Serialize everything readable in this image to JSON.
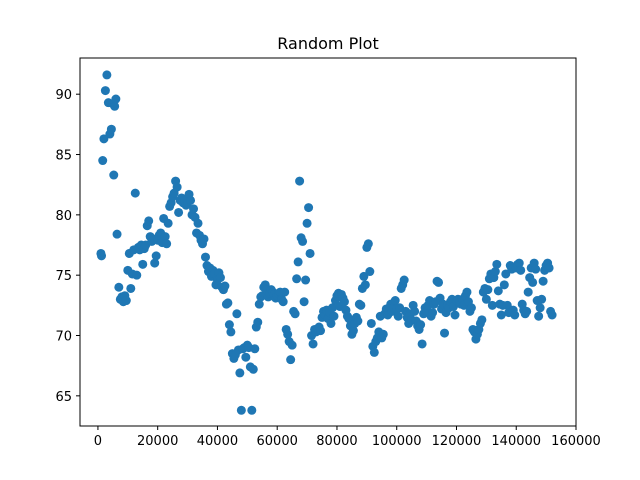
{
  "chart_data": {
    "type": "scatter",
    "title": "Random Plot",
    "xlabel": "",
    "ylabel": "",
    "xlim": [
      -6000,
      160000
    ],
    "ylim": [
      62.5,
      93
    ],
    "x_ticks": [
      0,
      20000,
      40000,
      60000,
      80000,
      100000,
      120000,
      140000,
      160000
    ],
    "x_tick_labels": [
      "0",
      "20000",
      "40000",
      "60000",
      "80000",
      "100000",
      "120000",
      "140000",
      "160000"
    ],
    "y_ticks": [
      65,
      70,
      75,
      80,
      85,
      90
    ],
    "y_tick_labels": [
      "65",
      "70",
      "75",
      "80",
      "85",
      "90"
    ],
    "grid": false,
    "legend": "none",
    "marker_color": "#1f77b4",
    "points": [
      [
        1000,
        76.8
      ],
      [
        1200,
        76.6
      ],
      [
        1600,
        84.5
      ],
      [
        2000,
        86.3
      ],
      [
        2500,
        90.3
      ],
      [
        3000,
        91.6
      ],
      [
        3500,
        89.3
      ],
      [
        4000,
        86.7
      ],
      [
        4500,
        87.1
      ],
      [
        5000,
        89.2
      ],
      [
        5300,
        83.3
      ],
      [
        5600,
        89.0
      ],
      [
        6000,
        89.6
      ],
      [
        6400,
        78.4
      ],
      [
        7000,
        74.0
      ],
      [
        7500,
        73.0
      ],
      [
        8000,
        73.2
      ],
      [
        8500,
        72.8
      ],
      [
        9000,
        73.3
      ],
      [
        9500,
        72.9
      ],
      [
        10000,
        75.4
      ],
      [
        10500,
        76.8
      ],
      [
        11000,
        73.9
      ],
      [
        11500,
        75.1
      ],
      [
        12000,
        77.1
      ],
      [
        12500,
        81.8
      ],
      [
        13000,
        75.0
      ],
      [
        13500,
        77.3
      ],
      [
        14000,
        77.1
      ],
      [
        14500,
        77.5
      ],
      [
        15000,
        75.9
      ],
      [
        15500,
        77.2
      ],
      [
        16000,
        77.5
      ],
      [
        16500,
        79.1
      ],
      [
        17000,
        79.5
      ],
      [
        17500,
        78.2
      ],
      [
        18000,
        77.8
      ],
      [
        18500,
        78.0
      ],
      [
        19000,
        76.0
      ],
      [
        19500,
        76.6
      ],
      [
        20000,
        77.9
      ],
      [
        20500,
        78.3
      ],
      [
        21000,
        78.5
      ],
      [
        21500,
        77.7
      ],
      [
        22000,
        79.7
      ],
      [
        22500,
        78.2
      ],
      [
        23000,
        77.6
      ],
      [
        23500,
        79.3
      ],
      [
        24000,
        80.7
      ],
      [
        24500,
        81.0
      ],
      [
        25000,
        81.5
      ],
      [
        25500,
        81.8
      ],
      [
        26000,
        82.8
      ],
      [
        26500,
        82.3
      ],
      [
        27000,
        80.2
      ],
      [
        27500,
        81.2
      ],
      [
        28000,
        81.4
      ],
      [
        28500,
        81.0
      ],
      [
        29000,
        81.2
      ],
      [
        29500,
        80.8
      ],
      [
        30000,
        81.0
      ],
      [
        30500,
        81.7
      ],
      [
        31000,
        81.2
      ],
      [
        31500,
        80.0
      ],
      [
        32000,
        80.5
      ],
      [
        32500,
        79.8
      ],
      [
        33000,
        78.5
      ],
      [
        33500,
        79.3
      ],
      [
        34000,
        78.3
      ],
      [
        34500,
        77.9
      ],
      [
        35000,
        77.6
      ],
      [
        35500,
        78.0
      ],
      [
        36000,
        76.5
      ],
      [
        36500,
        75.8
      ],
      [
        37000,
        75.3
      ],
      [
        37500,
        75.6
      ],
      [
        38000,
        74.9
      ],
      [
        38500,
        75.4
      ],
      [
        39000,
        75.1
      ],
      [
        39500,
        74.2
      ],
      [
        40000,
        74.6
      ],
      [
        40500,
        75.2
      ],
      [
        41000,
        74.8
      ],
      [
        41500,
        74.0
      ],
      [
        42000,
        73.8
      ],
      [
        42500,
        74.1
      ],
      [
        43000,
        72.6
      ],
      [
        43500,
        72.7
      ],
      [
        44000,
        70.9
      ],
      [
        44500,
        70.3
      ],
      [
        45000,
        68.5
      ],
      [
        45500,
        68.1
      ],
      [
        46000,
        68.4
      ],
      [
        46500,
        71.8
      ],
      [
        47000,
        68.8
      ],
      [
        47500,
        66.9
      ],
      [
        48000,
        63.8
      ],
      [
        48500,
        68.9
      ],
      [
        49000,
        69.0
      ],
      [
        49500,
        68.2
      ],
      [
        50000,
        69.2
      ],
      [
        50500,
        69.0
      ],
      [
        51000,
        67.4
      ],
      [
        51500,
        63.8
      ],
      [
        52000,
        67.2
      ],
      [
        52500,
        68.9
      ],
      [
        53000,
        70.7
      ],
      [
        53500,
        71.1
      ],
      [
        54000,
        72.6
      ],
      [
        54500,
        73.2
      ],
      [
        55000,
        73.3
      ],
      [
        55500,
        74.0
      ],
      [
        56000,
        74.2
      ],
      [
        56500,
        73.8
      ],
      [
        57000,
        73.2
      ],
      [
        57500,
        73.5
      ],
      [
        58000,
        73.8
      ],
      [
        58500,
        73.6
      ],
      [
        59000,
        73.4
      ],
      [
        59500,
        73.1
      ],
      [
        60000,
        73.3
      ],
      [
        60500,
        73.5
      ],
      [
        61000,
        73.6
      ],
      [
        61500,
        73.0
      ],
      [
        62000,
        72.8
      ],
      [
        62500,
        73.6
      ],
      [
        63000,
        70.5
      ],
      [
        63500,
        70.1
      ],
      [
        64000,
        69.5
      ],
      [
        64500,
        68.0
      ],
      [
        65000,
        69.2
      ],
      [
        65500,
        72.0
      ],
      [
        66000,
        71.8
      ],
      [
        66500,
        74.7
      ],
      [
        67000,
        76.1
      ],
      [
        67500,
        82.8
      ],
      [
        68000,
        78.1
      ],
      [
        68500,
        77.8
      ],
      [
        69000,
        72.8
      ],
      [
        69500,
        74.6
      ],
      [
        70000,
        79.3
      ],
      [
        70500,
        80.6
      ],
      [
        71000,
        76.8
      ],
      [
        71500,
        70.0
      ],
      [
        72000,
        69.3
      ],
      [
        72500,
        70.5
      ],
      [
        73000,
        70.3
      ],
      [
        73500,
        70.5
      ],
      [
        74000,
        70.7
      ],
      [
        74500,
        70.4
      ],
      [
        75000,
        71.5
      ],
      [
        75500,
        72.0
      ],
      [
        76000,
        71.7
      ],
      [
        76500,
        72.1
      ],
      [
        77000,
        71.4
      ],
      [
        77500,
        71.9
      ],
      [
        78000,
        71.0
      ],
      [
        78500,
        72.3
      ],
      [
        79000,
        71.6
      ],
      [
        79500,
        72.9
      ],
      [
        80000,
        73.3
      ],
      [
        80500,
        73.5
      ],
      [
        81000,
        72.4
      ],
      [
        81500,
        73.4
      ],
      [
        82000,
        73.1
      ],
      [
        82500,
        72.8
      ],
      [
        83000,
        72.1
      ],
      [
        83500,
        71.6
      ],
      [
        84000,
        71.4
      ],
      [
        84500,
        70.8
      ],
      [
        85000,
        70.1
      ],
      [
        85500,
        70.4
      ],
      [
        86000,
        71.0
      ],
      [
        86500,
        71.5
      ],
      [
        87000,
        71.2
      ],
      [
        87500,
        72.6
      ],
      [
        88000,
        72.5
      ],
      [
        88500,
        73.9
      ],
      [
        89000,
        74.9
      ],
      [
        89500,
        74.2
      ],
      [
        90000,
        77.3
      ],
      [
        90500,
        77.6
      ],
      [
        91000,
        75.3
      ],
      [
        91500,
        71.0
      ],
      [
        92000,
        69.1
      ],
      [
        92500,
        68.6
      ],
      [
        93000,
        69.5
      ],
      [
        93500,
        69.8
      ],
      [
        94000,
        70.3
      ],
      [
        94500,
        71.6
      ],
      [
        95000,
        69.8
      ],
      [
        95500,
        70.1
      ],
      [
        96000,
        71.8
      ],
      [
        96500,
        72.2
      ],
      [
        97000,
        71.7
      ],
      [
        97500,
        72.3
      ],
      [
        98000,
        72.6
      ],
      [
        98500,
        72.0
      ],
      [
        99000,
        72.3
      ],
      [
        99500,
        72.9
      ],
      [
        100000,
        72.2
      ],
      [
        100500,
        71.6
      ],
      [
        101000,
        72.3
      ],
      [
        101500,
        73.9
      ],
      [
        102000,
        74.2
      ],
      [
        102500,
        74.6
      ],
      [
        103000,
        72.0
      ],
      [
        103500,
        71.5
      ],
      [
        104000,
        71.0
      ],
      [
        104500,
        71.8
      ],
      [
        105000,
        71.3
      ],
      [
        105500,
        72.5
      ],
      [
        106000,
        72.0
      ],
      [
        106500,
        71.2
      ],
      [
        107000,
        70.8
      ],
      [
        107500,
        70.5
      ],
      [
        108000,
        70.9
      ],
      [
        108500,
        69.3
      ],
      [
        109000,
        71.8
      ],
      [
        109500,
        72.3
      ],
      [
        110000,
        72.0
      ],
      [
        110500,
        72.5
      ],
      [
        111000,
        72.9
      ],
      [
        111500,
        71.6
      ],
      [
        112000,
        71.9
      ],
      [
        112500,
        72.6
      ],
      [
        113000,
        72.8
      ],
      [
        113500,
        74.5
      ],
      [
        114000,
        74.4
      ],
      [
        114500,
        73.1
      ],
      [
        115000,
        72.2
      ],
      [
        115500,
        72.6
      ],
      [
        116000,
        70.2
      ],
      [
        116500,
        71.9
      ],
      [
        117000,
        72.5
      ],
      [
        117500,
        72.3
      ],
      [
        118000,
        72.8
      ],
      [
        118500,
        73.0
      ],
      [
        119000,
        72.4
      ],
      [
        119500,
        71.7
      ],
      [
        120000,
        72.9
      ],
      [
        120500,
        73.0
      ],
      [
        121000,
        72.7
      ],
      [
        121500,
        72.6
      ],
      [
        122000,
        73.0
      ],
      [
        122500,
        72.5
      ],
      [
        123000,
        73.3
      ],
      [
        123500,
        73.6
      ],
      [
        124000,
        72.8
      ],
      [
        124500,
        72.0
      ],
      [
        125000,
        72.3
      ],
      [
        125500,
        70.5
      ],
      [
        126000,
        70.3
      ],
      [
        126500,
        69.7
      ],
      [
        127000,
        70.1
      ],
      [
        127500,
        70.5
      ],
      [
        128000,
        71.0
      ],
      [
        128500,
        71.3
      ],
      [
        129000,
        73.6
      ],
      [
        129500,
        73.9
      ],
      [
        130000,
        73.0
      ],
      [
        130500,
        73.8
      ],
      [
        131000,
        74.7
      ],
      [
        131500,
        75.1
      ],
      [
        132000,
        72.5
      ],
      [
        132500,
        74.8
      ],
      [
        133000,
        75.3
      ],
      [
        133500,
        75.9
      ],
      [
        134000,
        73.7
      ],
      [
        134500,
        72.6
      ],
      [
        135000,
        71.7
      ],
      [
        135500,
        72.5
      ],
      [
        136000,
        74.2
      ],
      [
        136500,
        75.1
      ],
      [
        137000,
        72.5
      ],
      [
        137500,
        71.9
      ],
      [
        138000,
        75.8
      ],
      [
        138500,
        75.5
      ],
      [
        139000,
        72.1
      ],
      [
        139500,
        71.7
      ],
      [
        140000,
        75.6
      ],
      [
        140500,
        75.9
      ],
      [
        141000,
        76.0
      ],
      [
        141500,
        75.4
      ],
      [
        142000,
        72.6
      ],
      [
        142500,
        72.1
      ],
      [
        143000,
        71.8
      ],
      [
        143500,
        72.0
      ],
      [
        144000,
        73.6
      ],
      [
        144500,
        74.8
      ],
      [
        145000,
        75.6
      ],
      [
        145500,
        74.4
      ],
      [
        146000,
        76.0
      ],
      [
        146500,
        75.5
      ],
      [
        147000,
        72.9
      ],
      [
        147500,
        71.6
      ],
      [
        148000,
        72.3
      ],
      [
        148500,
        73.0
      ],
      [
        149000,
        74.5
      ],
      [
        149500,
        75.4
      ],
      [
        150000,
        75.8
      ],
      [
        150500,
        76.0
      ],
      [
        151000,
        75.6
      ],
      [
        151500,
        72.0
      ],
      [
        152000,
        71.7
      ]
    ]
  }
}
